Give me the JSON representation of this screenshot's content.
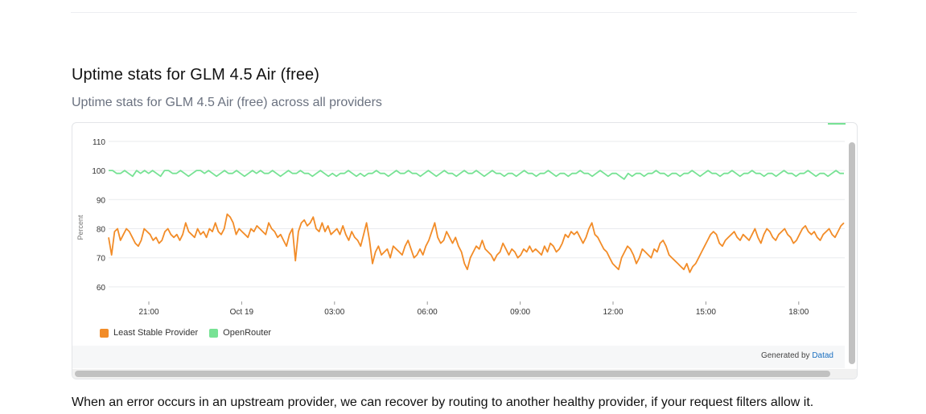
{
  "section": {
    "title": "Uptime stats for GLM 4.5 Air (free)",
    "subtitle": "Uptime stats for GLM 4.5 Air (free) across all providers"
  },
  "chart_data": {
    "type": "line",
    "ylabel": "Percent",
    "ylim": [
      55,
      113
    ],
    "yticks": [
      60,
      70,
      80,
      90,
      100,
      110
    ],
    "xticks": [
      "21:00",
      "Oct 19",
      "03:00",
      "06:00",
      "09:00",
      "12:00",
      "15:00",
      "18:00"
    ],
    "grid": true,
    "legend_position": "bottom-left",
    "series": [
      {
        "name": "Least Stable Provider",
        "color": "#f28c28",
        "values": [
          77,
          71,
          79,
          80,
          76,
          78,
          80,
          79,
          77,
          75,
          74,
          76,
          80,
          79,
          78,
          76,
          77,
          75,
          76,
          79,
          80,
          78,
          77,
          78,
          76,
          78,
          82,
          79,
          78,
          77,
          80,
          78,
          79,
          77,
          80,
          79,
          82,
          79,
          78,
          80,
          85,
          84,
          82,
          78,
          80,
          79,
          78,
          77,
          80,
          79,
          81,
          80,
          79,
          78,
          82,
          80,
          79,
          77,
          78,
          76,
          74,
          78,
          80,
          69,
          79,
          82,
          83,
          81,
          82,
          84,
          80,
          79,
          82,
          79,
          81,
          78,
          79,
          80,
          78,
          81,
          78,
          76,
          79,
          77,
          76,
          74,
          78,
          82,
          76,
          68,
          72,
          74,
          71,
          72,
          73,
          70,
          74,
          73,
          72,
          71,
          74,
          76,
          73,
          70,
          71,
          73,
          71,
          74,
          76,
          79,
          82,
          77,
          75,
          76,
          79,
          77,
          75,
          77,
          74,
          72,
          68,
          66,
          70,
          72,
          74,
          73,
          76,
          73,
          72,
          71,
          69,
          71,
          72,
          75,
          73,
          71,
          73,
          72,
          70,
          71,
          73,
          72,
          74,
          72,
          73,
          72,
          71,
          74,
          72,
          75,
          74,
          72,
          73,
          75,
          78,
          77,
          79,
          78,
          79,
          77,
          75,
          77,
          80,
          82,
          78,
          77,
          75,
          73,
          72,
          70,
          68,
          67,
          66,
          70,
          72,
          74,
          73,
          71,
          68,
          70,
          73,
          72,
          71,
          70,
          73,
          72,
          75,
          76,
          74,
          71,
          70,
          69,
          68,
          67,
          66,
          68,
          65,
          67,
          68,
          70,
          72,
          74,
          76,
          78,
          79,
          78,
          75,
          74,
          76,
          77,
          78,
          79,
          77,
          76,
          78,
          77,
          76,
          78,
          80,
          77,
          75,
          78,
          80,
          79,
          77,
          76,
          78,
          79,
          80,
          78,
          77,
          75,
          76,
          78,
          80,
          81,
          79,
          78,
          79,
          77,
          76,
          78,
          79,
          80,
          78,
          77,
          79,
          81,
          82
        ]
      },
      {
        "name": "OpenRouter",
        "color": "#77e294",
        "values": [
          100,
          100,
          99,
          99,
          100,
          99,
          98,
          100,
          99,
          100,
          99,
          100,
          99,
          98,
          100,
          100,
          99,
          99,
          100,
          99,
          98,
          99,
          100,
          100,
          99,
          100,
          99,
          98,
          99,
          100,
          99,
          99,
          100,
          99,
          98,
          99,
          100,
          99,
          100,
          99,
          99,
          100,
          99,
          98,
          99,
          100,
          99,
          99,
          100,
          99,
          99,
          98,
          99,
          100,
          99,
          98,
          99,
          98,
          99,
          99,
          100,
          99,
          98,
          99,
          98,
          99,
          99,
          100,
          99,
          99,
          98,
          99,
          100,
          99,
          99,
          100,
          99,
          99,
          98,
          99,
          100,
          99,
          98,
          99,
          100,
          99,
          99,
          98,
          99,
          100,
          99,
          99,
          100,
          99,
          98,
          99,
          100,
          99,
          99,
          98,
          99,
          99,
          98,
          99,
          100,
          99,
          99,
          98,
          99,
          99,
          100,
          99,
          98,
          99,
          99,
          98,
          99,
          99,
          100,
          99,
          99,
          98,
          99,
          100,
          99,
          98,
          99,
          99,
          98,
          97,
          99,
          98,
          99,
          99,
          98,
          99,
          99,
          100,
          99,
          99,
          98,
          99,
          99,
          98,
          99,
          99,
          100,
          99,
          98,
          99,
          100,
          99,
          99,
          98,
          99,
          99,
          100,
          99,
          98,
          99,
          99,
          100,
          99,
          99,
          98,
          99,
          99,
          98,
          99,
          100,
          99,
          99,
          98,
          99,
          99,
          100,
          99,
          98,
          99,
          99,
          98,
          99,
          100,
          99,
          99
        ]
      }
    ]
  },
  "legend": {
    "item1": "Least Stable Provider",
    "item2": "OpenRouter"
  },
  "footer": {
    "prefix": "Generated by ",
    "brand": "Datad"
  },
  "body_text": "When an error occurs in an upstream provider, we can recover by routing to another healthy provider, if your request filters allow it."
}
